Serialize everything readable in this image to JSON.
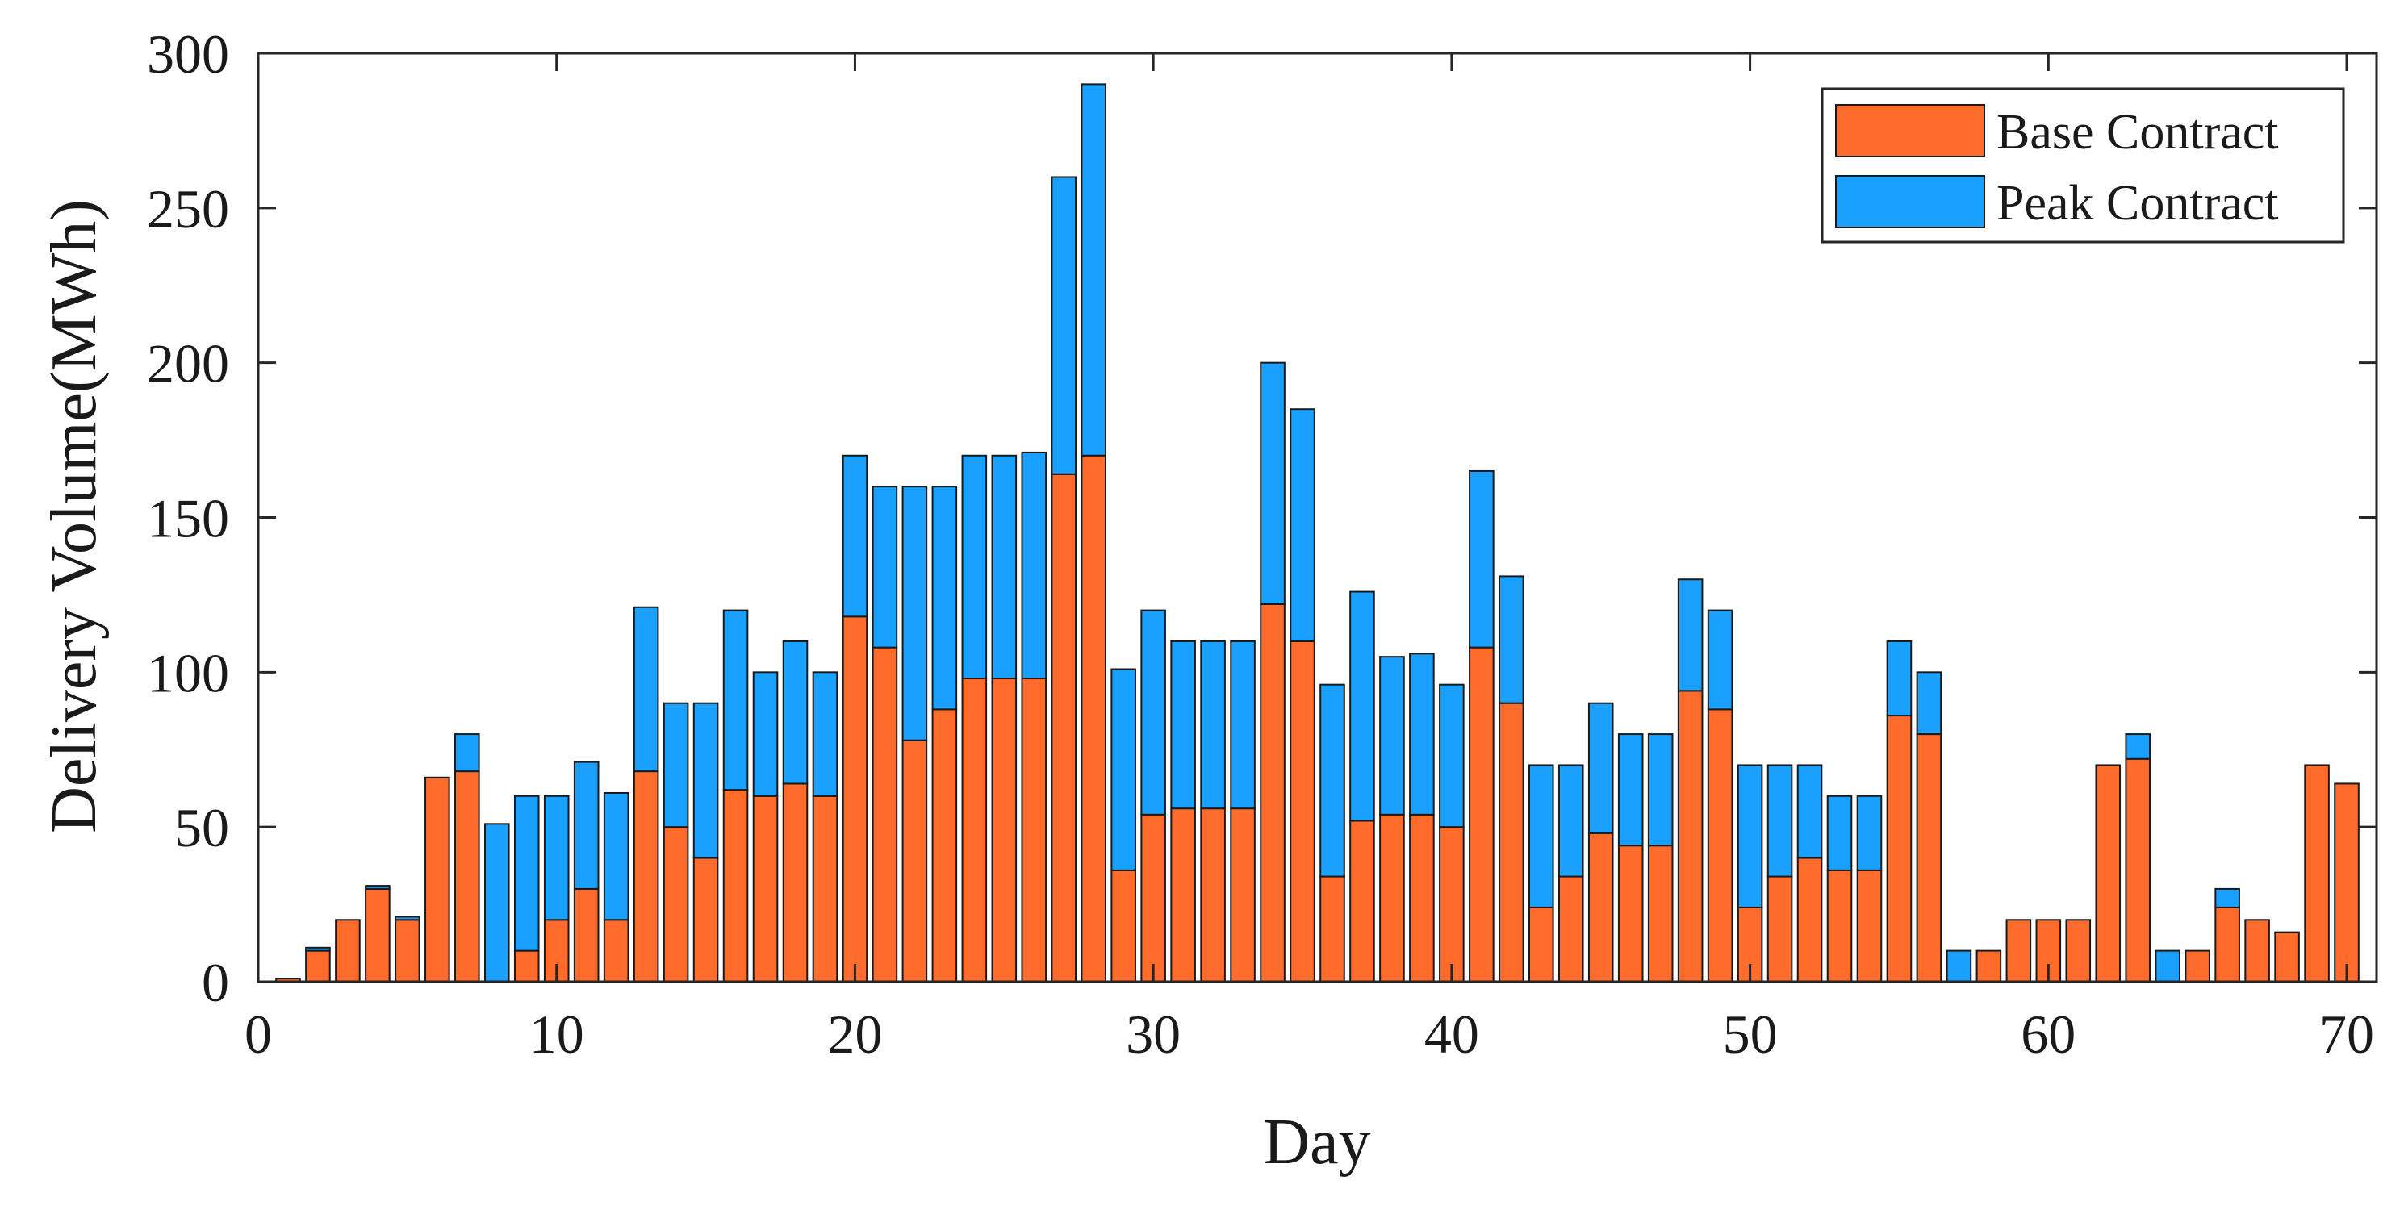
{
  "chart_data": {
    "type": "bar",
    "stacked": true,
    "title": "",
    "xlabel": "Day",
    "ylabel": "Delivery Volume(MWh)",
    "xlim": [
      0,
      71
    ],
    "ylim": [
      0,
      300
    ],
    "xticks": [
      0,
      10,
      20,
      30,
      40,
      50,
      60,
      70
    ],
    "yticks": [
      0,
      50,
      100,
      150,
      200,
      250,
      300
    ],
    "legend_position": "top-right",
    "x": [
      1,
      2,
      3,
      4,
      5,
      6,
      7,
      8,
      9,
      10,
      11,
      12,
      13,
      14,
      15,
      16,
      17,
      18,
      19,
      20,
      21,
      22,
      23,
      24,
      25,
      26,
      27,
      28,
      29,
      30,
      31,
      32,
      33,
      34,
      35,
      36,
      37,
      38,
      39,
      40,
      41,
      42,
      43,
      44,
      45,
      46,
      47,
      48,
      49,
      50,
      51,
      52,
      53,
      54,
      55,
      56,
      57,
      58,
      59,
      60,
      61,
      62,
      63,
      64,
      65,
      66,
      67,
      68,
      69,
      70
    ],
    "series": [
      {
        "name": "Base Contract",
        "color": "#ff6b2b",
        "values": [
          1,
          10,
          20,
          30,
          20,
          66,
          68,
          0,
          10,
          20,
          30,
          20,
          68,
          50,
          40,
          62,
          60,
          64,
          60,
          118,
          108,
          78,
          88,
          98,
          98,
          98,
          164,
          170,
          36,
          54,
          56,
          56,
          56,
          122,
          110,
          34,
          52,
          54,
          54,
          50,
          108,
          90,
          24,
          34,
          48,
          44,
          44,
          94,
          88,
          24,
          34,
          40,
          36,
          36,
          86,
          80,
          0,
          10,
          20,
          20,
          20,
          70,
          72,
          0,
          10,
          24,
          20,
          16,
          70,
          64
        ]
      },
      {
        "name": "Peak Contract",
        "color": "#1aa0ff",
        "values": [
          0,
          1,
          0,
          1,
          1,
          0,
          12,
          51,
          50,
          40,
          41,
          41,
          53,
          40,
          50,
          58,
          40,
          46,
          40,
          52,
          52,
          82,
          72,
          72,
          72,
          73,
          96,
          120,
          65,
          66,
          54,
          54,
          54,
          78,
          75,
          62,
          74,
          51,
          52,
          46,
          57,
          41,
          46,
          36,
          42,
          36,
          36,
          36,
          32,
          46,
          36,
          30,
          24,
          24,
          24,
          20,
          10,
          0,
          0,
          0,
          0,
          0,
          8,
          10,
          0,
          6,
          0,
          0,
          0,
          0
        ]
      }
    ]
  }
}
